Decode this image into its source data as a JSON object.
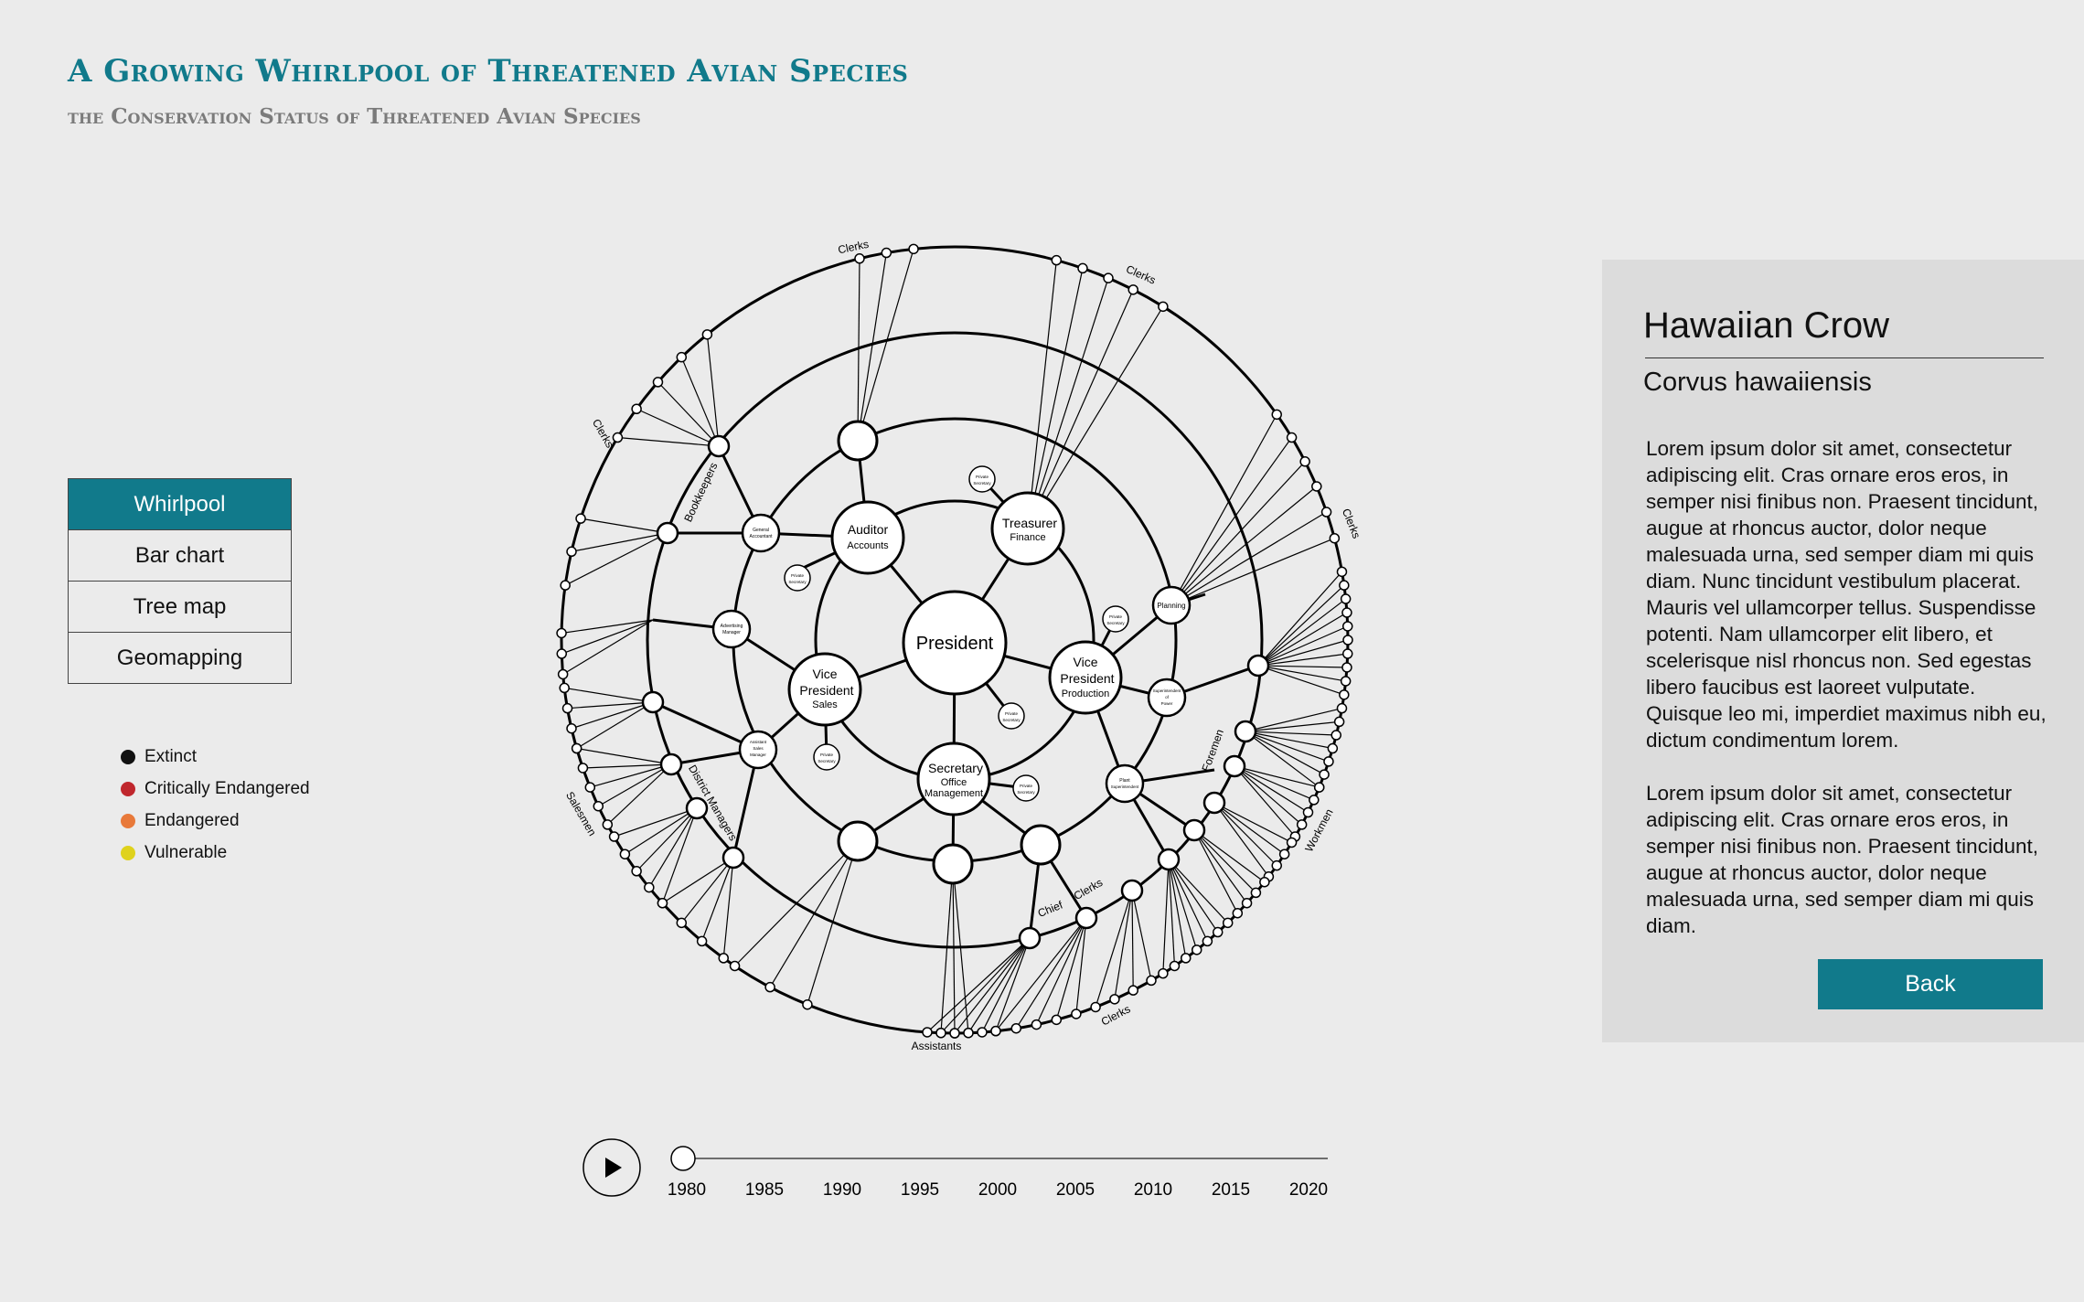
{
  "header": {
    "title": "A Growing Whirlpool of Threatened Avian Species",
    "subtitle": "the Conservation Status of Threatened Avian Species"
  },
  "nav": {
    "items": [
      {
        "label": "Whirlpool",
        "active": true
      },
      {
        "label": "Bar chart",
        "active": false
      },
      {
        "label": "Tree map",
        "active": false
      },
      {
        "label": "Geomapping",
        "active": false
      }
    ]
  },
  "legend": {
    "items": [
      {
        "label": "Extinct",
        "color": "#111111"
      },
      {
        "label": "Critically Endangered",
        "color": "#c0272d"
      },
      {
        "label": "Endangered",
        "color": "#e8793a"
      },
      {
        "label": "Vulnerable",
        "color": "#dfd21c"
      }
    ]
  },
  "diagram": {
    "center_label": "President",
    "nodes": [
      {
        "lines": [
          "Auditor",
          "Accounts"
        ]
      },
      {
        "lines": [
          "Treasurer",
          "Finance"
        ]
      },
      {
        "lines": [
          "Vice",
          "President",
          "Production"
        ]
      },
      {
        "lines": [
          "Secretary",
          "Office",
          "Management"
        ]
      },
      {
        "lines": [
          "Vice",
          "President",
          "Sales"
        ]
      }
    ],
    "small_nodes": [
      {
        "lines": [
          "General",
          "Accountant"
        ]
      },
      {
        "lines": [
          "Planning"
        ]
      },
      {
        "lines": [
          "Superintendent",
          "of",
          "Power"
        ]
      },
      {
        "lines": [
          "Plant",
          "Superintendent"
        ]
      },
      {
        "lines": [
          "Assistant",
          "Sales",
          "Manager"
        ]
      },
      {
        "lines": [
          "Advertising",
          "Manager"
        ]
      }
    ],
    "secretary_label": "Private Secretary",
    "outer_labels": [
      "Clerks",
      "Clerks",
      "Clerks",
      "Clerks",
      "Workmen",
      "Clerks",
      "Assistants",
      "Salesmen",
      "Bookkeepers",
      "Foremen",
      "Clerks",
      "Chief",
      "District Managers"
    ]
  },
  "panel": {
    "common_name": "Hawaiian Crow",
    "scientific_name": "Corvus hawaiiensis",
    "paragraph1": "Lorem ipsum dolor sit amet, consectetur adipiscing elit. Cras ornare eros eros, in semper nisi finibus non. Praesent tincidunt, augue at rhoncus auctor, dolor neque malesuada urna, sed semper diam mi quis diam. Nunc tincidunt vestibulum placerat. Mauris vel ullamcorper tellus. Suspendisse potenti. Nam ullamcorper elit libero, et scelerisque nisl rhoncus non. Sed egestas libero faucibus est laoreet vulputate. Quisque leo mi, imperdiet maximus nibh eu, dictum condimentum lorem.",
    "paragraph2": "Lorem ipsum dolor sit amet, consectetur adipiscing elit. Cras ornare eros eros, in semper nisi finibus non. Praesent tincidunt, augue at rhoncus auctor, dolor neque malesuada urna, sed semper diam mi quis diam.",
    "back_label": "Back"
  },
  "timeline": {
    "years": [
      "1980",
      "1985",
      "1990",
      "1995",
      "2000",
      "2005",
      "2010",
      "2015",
      "2020"
    ],
    "current_year": "1980"
  }
}
